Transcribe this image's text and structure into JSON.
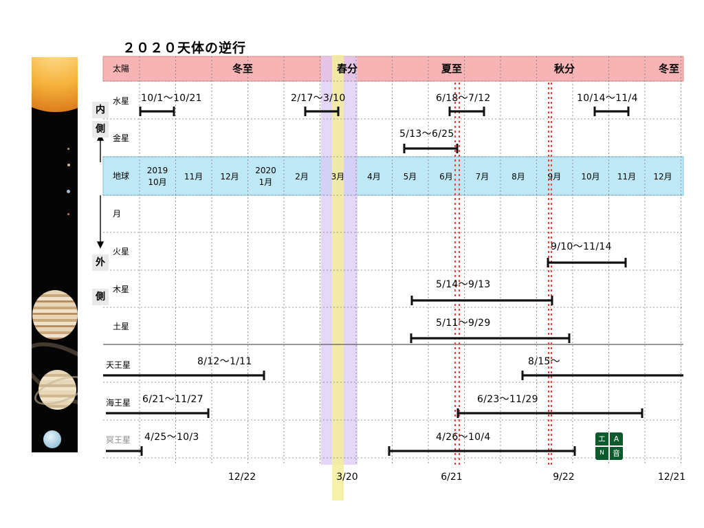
{
  "title": "２０２０天体の逆行",
  "side_labels": {
    "inner_1": "内",
    "inner_2": "側",
    "outer_1": "外",
    "outer_2": "側"
  },
  "rows": {
    "sun": "太陽",
    "mercury": "水星",
    "venus": "金星",
    "earth": "地球",
    "moon": "月",
    "mars": "火星",
    "jupiter": "木星",
    "saturn": "土星",
    "uranus": "天王星",
    "neptune": "海王星",
    "pluto": "冥王星"
  },
  "months": [
    "2019\n10月",
    "11月",
    "12月",
    "2020\n1月",
    "2月",
    "3月",
    "4月",
    "5月",
    "6月",
    "7月",
    "8月",
    "9月",
    "10月",
    "11月",
    "12月"
  ],
  "sun_events": {
    "winter_solstice_1": "冬至",
    "spring_equinox": "春分",
    "summer_solstice": "夏至",
    "autumn_equinox": "秋分",
    "winter_solstice_2": "冬至"
  },
  "retrogrades": {
    "mercury_1": "10/1〜10/21",
    "mercury_2": "2/17〜3/10",
    "mercury_3": "6/18〜7/12",
    "mercury_4": "10/14〜11/4",
    "venus_1": "5/13〜6/25",
    "mars_1": "9/10〜11/14",
    "jupiter_1": "5/14〜9/13",
    "saturn_1": "5/11〜9/29",
    "uranus_1": "8/12〜1/11",
    "uranus_2": "8/15〜",
    "neptune_1": "6/21〜11/27",
    "neptune_2": "6/23〜11/29",
    "pluto_1": "4/25〜10/3",
    "pluto_2": "4/26〜10/4"
  },
  "dates": {
    "d1": "12/22",
    "d2": "3/20",
    "d3": "6/21",
    "d4": "9/22",
    "d5": "12/21"
  },
  "logo": {
    "tl": "エ",
    "tr": "A",
    "bl": "N",
    "br": "音"
  },
  "colors": {
    "sun_row": "#f7b4b4",
    "earth_row": "#bfe8f7",
    "equinox_band": "#dcc9f5",
    "equinox_line": "#f5ee9a",
    "solstice_line": "#e8443a",
    "retrograde_bar": "#111111"
  }
}
